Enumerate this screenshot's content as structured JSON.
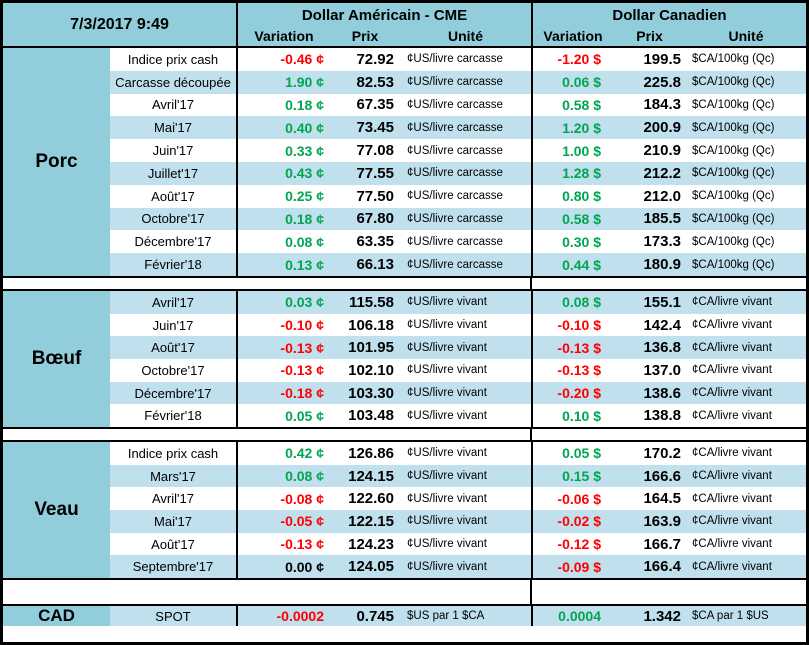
{
  "window": {
    "timestamp": "7/3/2017 9:49"
  },
  "colors": {
    "header_blue": "#92CDDC",
    "band_blue": "#BFE0EC",
    "up_green": "#00A651",
    "down_red": "#FF0000",
    "flat_black": "#000000"
  },
  "header": {
    "us_title": "Dollar Américain - CME",
    "ca_title": "Dollar Canadien",
    "subcols": [
      "Variation",
      "Prix",
      "Unité"
    ]
  },
  "sections": [
    {
      "category": "Porc",
      "first_band": "white",
      "rows": [
        {
          "label": "Indice prix cash",
          "us": {
            "var": "-0.46 ¢",
            "dir": "down",
            "prix": "72.92",
            "unit": "¢US/livre carcasse"
          },
          "ca": {
            "var": "-1.20 $",
            "dir": "down",
            "prix": "199.5",
            "unit": "$CA/100kg (Qc)"
          }
        },
        {
          "label": "Carcasse découpée",
          "us": {
            "var": "1.90 ¢",
            "dir": "up",
            "prix": "82.53",
            "unit": "¢US/livre carcasse"
          },
          "ca": {
            "var": "0.06 $",
            "dir": "up",
            "prix": "225.8",
            "unit": "$CA/100kg (Qc)"
          }
        },
        {
          "label": "Avril'17",
          "us": {
            "var": "0.18 ¢",
            "dir": "up",
            "prix": "67.35",
            "unit": "¢US/livre carcasse"
          },
          "ca": {
            "var": "0.58 $",
            "dir": "up",
            "prix": "184.3",
            "unit": "$CA/100kg (Qc)"
          }
        },
        {
          "label": "Mai'17",
          "us": {
            "var": "0.40 ¢",
            "dir": "up",
            "prix": "73.45",
            "unit": "¢US/livre carcasse"
          },
          "ca": {
            "var": "1.20 $",
            "dir": "up",
            "prix": "200.9",
            "unit": "$CA/100kg (Qc)"
          }
        },
        {
          "label": "Juin'17",
          "us": {
            "var": "0.33 ¢",
            "dir": "up",
            "prix": "77.08",
            "unit": "¢US/livre carcasse"
          },
          "ca": {
            "var": "1.00 $",
            "dir": "up",
            "prix": "210.9",
            "unit": "$CA/100kg (Qc)"
          }
        },
        {
          "label": "Juillet'17",
          "us": {
            "var": "0.43 ¢",
            "dir": "up",
            "prix": "77.55",
            "unit": "¢US/livre carcasse"
          },
          "ca": {
            "var": "1.28 $",
            "dir": "up",
            "prix": "212.2",
            "unit": "$CA/100kg (Qc)"
          }
        },
        {
          "label": "Août'17",
          "us": {
            "var": "0.25 ¢",
            "dir": "up",
            "prix": "77.50",
            "unit": "¢US/livre carcasse"
          },
          "ca": {
            "var": "0.80 $",
            "dir": "up",
            "prix": "212.0",
            "unit": "$CA/100kg (Qc)"
          }
        },
        {
          "label": "Octobre'17",
          "us": {
            "var": "0.18 ¢",
            "dir": "up",
            "prix": "67.80",
            "unit": "¢US/livre carcasse"
          },
          "ca": {
            "var": "0.58 $",
            "dir": "up",
            "prix": "185.5",
            "unit": "$CA/100kg (Qc)"
          }
        },
        {
          "label": "Décembre'17",
          "us": {
            "var": "0.08 ¢",
            "dir": "up",
            "prix": "63.35",
            "unit": "¢US/livre carcasse"
          },
          "ca": {
            "var": "0.30 $",
            "dir": "up",
            "prix": "173.3",
            "unit": "$CA/100kg (Qc)"
          }
        },
        {
          "label": "Février'18",
          "us": {
            "var": "0.13 ¢",
            "dir": "up",
            "prix": "66.13",
            "unit": "¢US/livre carcasse"
          },
          "ca": {
            "var": "0.44 $",
            "dir": "up",
            "prix": "180.9",
            "unit": "$CA/100kg (Qc)"
          }
        }
      ]
    },
    {
      "category": "Bœuf",
      "first_band": "blue",
      "rows": [
        {
          "label": "Avril'17",
          "us": {
            "var": "0.03 ¢",
            "dir": "up",
            "prix": "115.58",
            "unit": "¢US/livre vivant"
          },
          "ca": {
            "var": "0.08 $",
            "dir": "up",
            "prix": "155.1",
            "unit": "¢CA/livre vivant"
          }
        },
        {
          "label": "Juin'17",
          "us": {
            "var": "-0.10 ¢",
            "dir": "down",
            "prix": "106.18",
            "unit": "¢US/livre vivant"
          },
          "ca": {
            "var": "-0.10 $",
            "dir": "down",
            "prix": "142.4",
            "unit": "¢CA/livre vivant"
          }
        },
        {
          "label": "Août'17",
          "us": {
            "var": "-0.13 ¢",
            "dir": "down",
            "prix": "101.95",
            "unit": "¢US/livre vivant"
          },
          "ca": {
            "var": "-0.13 $",
            "dir": "down",
            "prix": "136.8",
            "unit": "¢CA/livre vivant"
          }
        },
        {
          "label": "Octobre'17",
          "us": {
            "var": "-0.13 ¢",
            "dir": "down",
            "prix": "102.10",
            "unit": "¢US/livre vivant"
          },
          "ca": {
            "var": "-0.13 $",
            "dir": "down",
            "prix": "137.0",
            "unit": "¢CA/livre vivant"
          }
        },
        {
          "label": "Décembre'17",
          "us": {
            "var": "-0.18 ¢",
            "dir": "down",
            "prix": "103.30",
            "unit": "¢US/livre vivant"
          },
          "ca": {
            "var": "-0.20 $",
            "dir": "down",
            "prix": "138.6",
            "unit": "¢CA/livre vivant"
          }
        },
        {
          "label": "Février'18",
          "us": {
            "var": "0.05 ¢",
            "dir": "up",
            "prix": "103.48",
            "unit": "¢US/livre vivant"
          },
          "ca": {
            "var": "0.10 $",
            "dir": "up",
            "prix": "138.8",
            "unit": "¢CA/livre vivant"
          }
        }
      ]
    },
    {
      "category": "Veau",
      "first_band": "white",
      "rows": [
        {
          "label": "Indice prix cash",
          "us": {
            "var": "0.42 ¢",
            "dir": "up",
            "prix": "126.86",
            "unit": "¢US/livre vivant"
          },
          "ca": {
            "var": "0.05 $",
            "dir": "up",
            "prix": "170.2",
            "unit": "¢CA/livre vivant"
          }
        },
        {
          "label": "Mars'17",
          "us": {
            "var": "0.08 ¢",
            "dir": "up",
            "prix": "124.15",
            "unit": "¢US/livre vivant"
          },
          "ca": {
            "var": "0.15 $",
            "dir": "up",
            "prix": "166.6",
            "unit": "¢CA/livre vivant"
          }
        },
        {
          "label": "Avril'17",
          "us": {
            "var": "-0.08 ¢",
            "dir": "down",
            "prix": "122.60",
            "unit": "¢US/livre vivant"
          },
          "ca": {
            "var": "-0.06 $",
            "dir": "down",
            "prix": "164.5",
            "unit": "¢CA/livre vivant"
          }
        },
        {
          "label": "Mai'17",
          "us": {
            "var": "-0.05 ¢",
            "dir": "down",
            "prix": "122.15",
            "unit": "¢US/livre vivant"
          },
          "ca": {
            "var": "-0.02 $",
            "dir": "down",
            "prix": "163.9",
            "unit": "¢CA/livre vivant"
          }
        },
        {
          "label": "Août'17",
          "us": {
            "var": "-0.13 ¢",
            "dir": "down",
            "prix": "124.23",
            "unit": "¢US/livre vivant"
          },
          "ca": {
            "var": "-0.12 $",
            "dir": "down",
            "prix": "166.7",
            "unit": "¢CA/livre vivant"
          }
        },
        {
          "label": "Septembre'17",
          "us": {
            "var": "0.00 ¢",
            "dir": "flat",
            "prix": "124.05",
            "unit": "¢US/livre vivant"
          },
          "ca": {
            "var": "-0.09 $",
            "dir": "down",
            "prix": "166.4",
            "unit": "¢CA/livre vivant"
          }
        }
      ]
    }
  ],
  "cad_row": {
    "category": "CAD",
    "label": "SPOT",
    "us": {
      "var": "-0.0002",
      "dir": "down",
      "prix": "0.745",
      "unit": "$US par 1 $CA"
    },
    "ca": {
      "var": "0.0004",
      "dir": "up",
      "prix": "1.342",
      "unit": "$CA par 1 $US"
    }
  }
}
